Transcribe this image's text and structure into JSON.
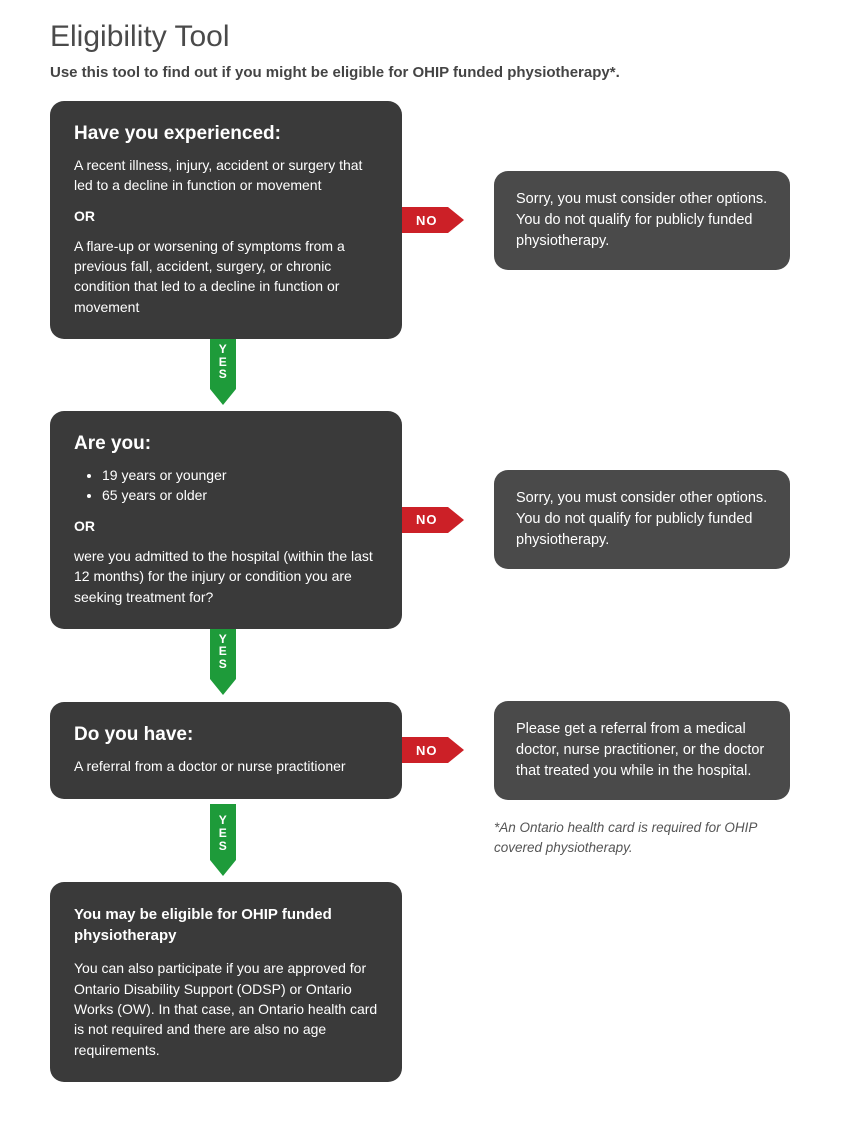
{
  "title": "Eligibility Tool",
  "subtitle": "Use this tool to find out if you might be eligible for OHIP funded physiotherapy*.",
  "labels": {
    "no": "NO",
    "yes": "YES",
    "or": "OR"
  },
  "colors": {
    "question_bg": "#3a3a3a",
    "answer_bg": "#4a4a4a",
    "no": "#cc2027",
    "yes": "#1e9b3a",
    "text_light": "#ffffff",
    "title": "#4a4a4a"
  },
  "steps": {
    "q1": {
      "heading": "Have you experienced:",
      "text_a": "A recent illness, injury, accident or surgery that led to a decline in function or movement",
      "text_b": "A flare-up or worsening of symptoms from a previous fall, accident, surgery, or chronic condition that led to a decline in function or movement",
      "no_answer": "Sorry, you must consider other options. You do not qualify for publicly funded physiotherapy."
    },
    "q2": {
      "heading": "Are you:",
      "bullet_a": "19 years or younger",
      "bullet_b": "65 years or older",
      "text_b": "were you admitted to the hospital (within the last 12 months) for the injury or condition you are seeking treatment for?",
      "no_answer": "Sorry, you must consider other options. You do not qualify for publicly funded physiotherapy."
    },
    "q3": {
      "heading": "Do you have:",
      "text_a": "A referral from a doctor or nurse practitioner",
      "no_answer": "Please get a referral from a medical doctor, nurse practitioner, or the doctor that treated you while in the hospital."
    },
    "result": {
      "heading": "You may be eligible for OHIP funded physiotherapy",
      "text": "You can also participate if you are approved for Ontario Disability Support (ODSP) or Ontario Works (OW). In that case, an Ontario health card is not required and there are also no age requirements."
    }
  },
  "footnote": "*An Ontario health card is required for OHIP covered physiotherapy."
}
